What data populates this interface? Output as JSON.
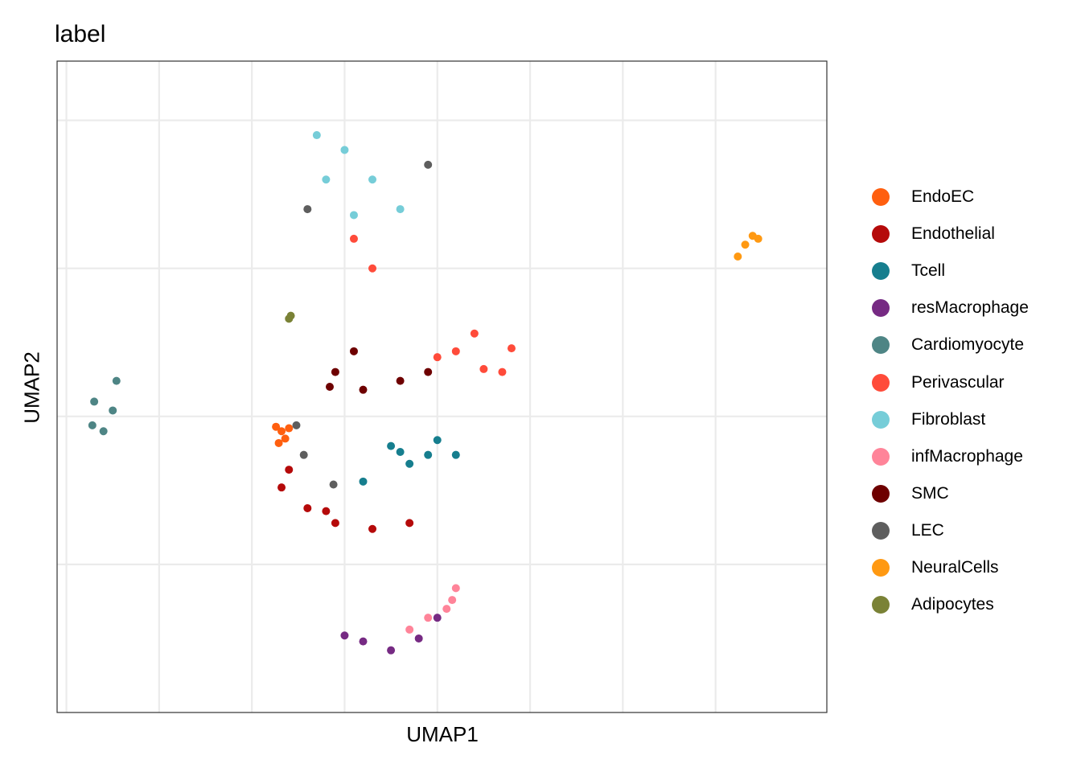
{
  "chart_data": {
    "type": "scatter",
    "title": "label",
    "xlabel": "UMAP1",
    "ylabel": "UMAP2",
    "grid": true,
    "legend_position": "right",
    "series": [
      {
        "name": "EndoEC",
        "color": "#FF5F0F",
        "points": [
          [
            -3.4,
            -0.5
          ],
          [
            -3.7,
            -0.35
          ],
          [
            -3.2,
            -0.75
          ],
          [
            -3.0,
            -0.4
          ],
          [
            -3.55,
            -0.9
          ]
        ]
      },
      {
        "name": "Endothelial",
        "color": "#B50A0A",
        "points": [
          [
            -2.0,
            -3.1
          ],
          [
            -0.5,
            -3.6
          ],
          [
            1.5,
            -3.8
          ],
          [
            3.5,
            -3.6
          ],
          [
            -3.4,
            -2.4
          ],
          [
            -3.0,
            -1.8
          ],
          [
            -1.0,
            -3.2
          ]
        ]
      },
      {
        "name": "Tcell",
        "color": "#167E8E",
        "points": [
          [
            3.0,
            -1.2
          ],
          [
            4.5,
            -1.3
          ],
          [
            6.0,
            -1.3
          ],
          [
            3.5,
            -1.6
          ],
          [
            5.0,
            -0.8
          ],
          [
            1.0,
            -2.2
          ],
          [
            2.5,
            -1.0
          ]
        ]
      },
      {
        "name": "resMacrophage",
        "color": "#762A83",
        "points": [
          [
            1.0,
            -7.6
          ],
          [
            2.5,
            -7.9
          ],
          [
            4.0,
            -7.5
          ],
          [
            5.0,
            -6.8
          ],
          [
            0.0,
            -7.4
          ]
        ]
      },
      {
        "name": "Cardiomyocyte",
        "color": "#4E8585",
        "points": [
          [
            -13.5,
            0.5
          ],
          [
            -12.5,
            0.2
          ],
          [
            -13.0,
            -0.5
          ],
          [
            -12.3,
            1.2
          ],
          [
            -13.6,
            -0.3
          ]
        ]
      },
      {
        "name": "Perivascular",
        "color": "#FF4B3A",
        "points": [
          [
            6.0,
            2.2
          ],
          [
            7.5,
            1.6
          ],
          [
            8.5,
            1.5
          ],
          [
            7.0,
            2.8
          ],
          [
            9.0,
            2.3
          ],
          [
            5.0,
            2.0
          ],
          [
            1.5,
            5.0
          ],
          [
            0.5,
            6.0
          ]
        ]
      },
      {
        "name": "Fibroblast",
        "color": "#76CDD8",
        "points": [
          [
            -1.5,
            9.5
          ],
          [
            0.0,
            9.0
          ],
          [
            1.5,
            8.0
          ],
          [
            3.0,
            7.0
          ],
          [
            -1.0,
            8.0
          ],
          [
            0.5,
            6.8
          ]
        ]
      },
      {
        "name": "infMacrophage",
        "color": "#FF8499",
        "points": [
          [
            5.5,
            -6.5
          ],
          [
            6.0,
            -5.8
          ],
          [
            4.5,
            -6.8
          ],
          [
            3.5,
            -7.2
          ],
          [
            5.8,
            -6.2
          ]
        ]
      },
      {
        "name": "SMC",
        "color": "#6E0000",
        "points": [
          [
            -0.5,
            1.5
          ],
          [
            1.0,
            0.9
          ],
          [
            3.0,
            1.2
          ],
          [
            4.5,
            1.5
          ],
          [
            0.5,
            2.2
          ],
          [
            -0.8,
            1.0
          ]
        ]
      },
      {
        "name": "LEC",
        "color": "#5E5E5E",
        "points": [
          [
            -2.2,
            -1.3
          ],
          [
            -2.6,
            -0.3
          ],
          [
            -0.6,
            -2.3
          ],
          [
            4.5,
            8.5
          ],
          [
            -2.0,
            7.0
          ]
        ]
      },
      {
        "name": "NeuralCells",
        "color": "#FF9912",
        "points": [
          [
            22.0,
            6.1
          ],
          [
            22.3,
            6.0
          ],
          [
            21.6,
            5.8
          ],
          [
            21.2,
            5.4
          ]
        ]
      },
      {
        "name": "Adipocytes",
        "color": "#7A8236",
        "points": [
          [
            -3.0,
            3.3
          ],
          [
            -2.9,
            3.4
          ]
        ]
      }
    ]
  }
}
